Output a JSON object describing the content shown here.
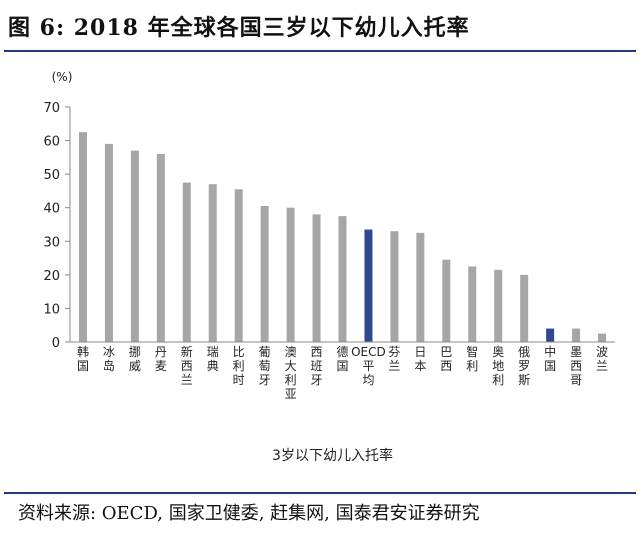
{
  "figure": {
    "title": "图 6:  2018 年全球各国三岁以下幼儿入托率",
    "source": "资料来源: OECD, 国家卫健委, 赶集网, 国泰君安证券研究"
  },
  "colors": {
    "default_bar": "#a6a6a6",
    "highlight_bar": "#2e4a8f",
    "rule": "#1f3d7a"
  },
  "chart_data": {
    "type": "bar",
    "title": "",
    "xlabel": "3岁以下幼儿入托率",
    "ylabel": "(%)",
    "ylim": [
      0,
      70
    ],
    "yticks": [
      0,
      10,
      20,
      30,
      40,
      50,
      60,
      70
    ],
    "grid": false,
    "categories": [
      "韩国",
      "冰岛",
      "挪威",
      "丹麦",
      "新西兰",
      "瑞典",
      "比利时",
      "葡萄牙",
      "澳大利亚",
      "西班牙",
      "德国",
      "OECD平均",
      "芬兰",
      "日本",
      "巴西",
      "智利",
      "奥地利",
      "俄罗斯",
      "中国",
      "墨西哥",
      "波兰"
    ],
    "values": [
      62.5,
      59,
      57,
      56,
      47.5,
      47,
      45.5,
      40.5,
      40,
      38,
      37.5,
      33.5,
      33,
      32.5,
      24.5,
      22.5,
      21.5,
      20,
      4,
      4,
      2.5
    ],
    "highlight": [
      "OECD平均",
      "中国"
    ]
  }
}
